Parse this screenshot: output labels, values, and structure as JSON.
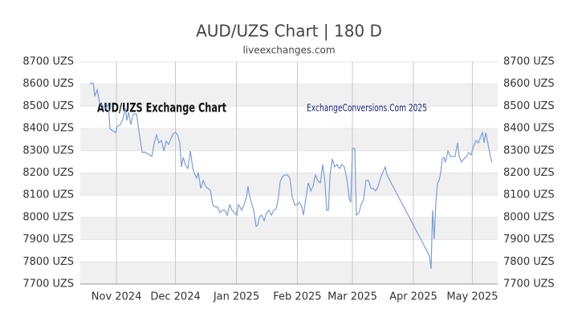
{
  "chart_data": {
    "type": "line",
    "title": "AUD/UZS Chart | 180 D",
    "subtitle": "liveexchanges.com",
    "annotations": [
      "AUD/UZS Exchange Chart",
      "ExchangeConversions.Com 2025"
    ],
    "color": "#7b9edb",
    "grid": true,
    "x": [
      -13.5,
      -11.8,
      -11,
      -9.8,
      -8.6,
      -6.9,
      -5.3,
      -4.1,
      -3.3,
      -2,
      -0.4,
      0.4,
      2,
      3.3,
      4.5,
      5.3,
      6.1,
      7.3,
      8.6,
      10.2,
      11.8,
      13.1,
      14.7,
      16.3,
      18,
      19.2,
      20.4,
      21.6,
      22.9,
      24.1,
      25.3,
      26.5,
      27.8,
      29,
      30.2,
      31.4,
      32.2,
      33.1,
      33.9,
      35.1,
      36.3,
      37.6,
      38.8,
      40,
      40.8,
      41.6,
      42.9,
      44.1,
      45.3,
      46.5,
      47.8,
      49,
      50.2,
      51.4,
      52.7,
      53.9,
      55.1,
      56.3,
      57.6,
      58.8,
      60,
      61.2,
      62,
      62.9,
      63.7,
      64.9,
      66.1,
      66.9,
      67.8,
      68.6,
      69.8,
      71,
      71.8,
      72.7,
      73.9,
      75.1,
      76.3,
      77.6,
      78.8,
      80,
      81.2,
      82,
      83.3,
      84.5,
      85.7,
      86.9,
      88.2,
      89.4,
      90.6,
      91.8,
      93.1,
      94.3,
      95.1,
      96.3,
      97.6,
      98.8,
      100,
      101.2,
      102.4,
      103.7,
      104.9,
      106.1,
      106.9,
      107.8,
      108.6,
      109.8,
      111,
      112.2,
      113.5,
      114.7,
      115.9,
      117.1,
      118.4,
      119.2,
      120,
      121.2,
      122,
      123.3,
      124.5,
      125.7,
      126.9,
      128.2,
      129.4,
      130.6,
      131.8,
      133.1,
      134.3,
      135.5,
      136.7,
      137.6,
      158.4,
      159.2,
      160,
      160.8,
      161.6,
      162.4,
      163.3,
      164.1,
      164.9,
      165.7,
      166.5,
      167.3,
      168.6,
      169.8,
      171,
      172.2,
      173.5,
      174.3,
      175.5,
      176.7,
      178,
      179.2,
      180.4,
      181.6,
      182.9,
      184.1,
      185.3,
      186.1,
      187,
      187.8,
      189,
      190.2,
      191
    ],
    "values": [
      8603,
      8603,
      8545,
      8574,
      8516,
      8501,
      8491,
      8509,
      8400,
      8390,
      8382,
      8408,
      8418,
      8444,
      8491,
      8436,
      8473,
      8418,
      8465,
      8465,
      8364,
      8292,
      8292,
      8285,
      8274,
      8335,
      8371,
      8335,
      8346,
      8299,
      8343,
      8328,
      8357,
      8379,
      8382,
      8364,
      8335,
      8227,
      8270,
      8238,
      8220,
      8299,
      8220,
      8191,
      8177,
      8202,
      8130,
      8166,
      8140,
      8130,
      8122,
      8054,
      8047,
      8047,
      8021,
      8032,
      8032,
      8010,
      8057,
      8032,
      8021,
      8010,
      8057,
      8047,
      8032,
      8057,
      8090,
      8140,
      8094,
      8068,
      8032,
      7960,
      7964,
      8003,
      8010,
      7985,
      8021,
      8032,
      8010,
      8032,
      8039,
      8068,
      8162,
      8184,
      8191,
      8191,
      8177,
      8094,
      8057,
      8057,
      8068,
      8047,
      8010,
      8083,
      8155,
      8119,
      8140,
      8191,
      8166,
      8155,
      8238,
      8155,
      8032,
      8032,
      8191,
      8263,
      8227,
      8238,
      8220,
      8238,
      8227,
      8177,
      8083,
      8068,
      8310,
      8310,
      8010,
      8021,
      8057,
      8083,
      8166,
      8166,
      8130,
      8130,
      8119,
      8140,
      8177,
      8202,
      8227,
      8191,
      7841,
      7823,
      7769,
      8032,
      7902,
      8057,
      8155,
      8166,
      8202,
      8263,
      8270,
      8249,
      8299,
      8274,
      8274,
      8274,
      8335,
      8274,
      8249,
      8263,
      8274,
      8292,
      8281,
      8321,
      8346,
      8335,
      8364,
      8382,
      8335,
      8382,
      8328,
      8274,
      8249
    ],
    "xlim": [
      -18.4,
      193.9
    ],
    "xticks": [
      {
        "value": 0,
        "label": "Nov 2024"
      },
      {
        "value": 30,
        "label": "Dec 2024"
      },
      {
        "value": 61,
        "label": "Jan 2025"
      },
      {
        "value": 92,
        "label": "Feb 2025"
      },
      {
        "value": 120,
        "label": "Mar 2025"
      },
      {
        "value": 151,
        "label": "Apr 2025"
      },
      {
        "value": 181,
        "label": "May 2025"
      }
    ],
    "ylim": [
      7700,
      8700
    ],
    "yticks": [
      {
        "value": 7700,
        "label": "7700 UZS"
      },
      {
        "value": 7800,
        "label": "7800 UZS"
      },
      {
        "value": 7900,
        "label": "7900 UZS"
      },
      {
        "value": 8000,
        "label": "8000 UZS"
      },
      {
        "value": 8100,
        "label": "8100 UZS"
      },
      {
        "value": 8200,
        "label": "8200 UZS"
      },
      {
        "value": 8300,
        "label": "8300 UZS"
      },
      {
        "value": 8400,
        "label": "8400 UZS"
      },
      {
        "value": 8500,
        "label": "8500 UZS"
      },
      {
        "value": 8600,
        "label": "8600 UZS"
      },
      {
        "value": 8700,
        "label": "8700 UZS"
      }
    ]
  }
}
